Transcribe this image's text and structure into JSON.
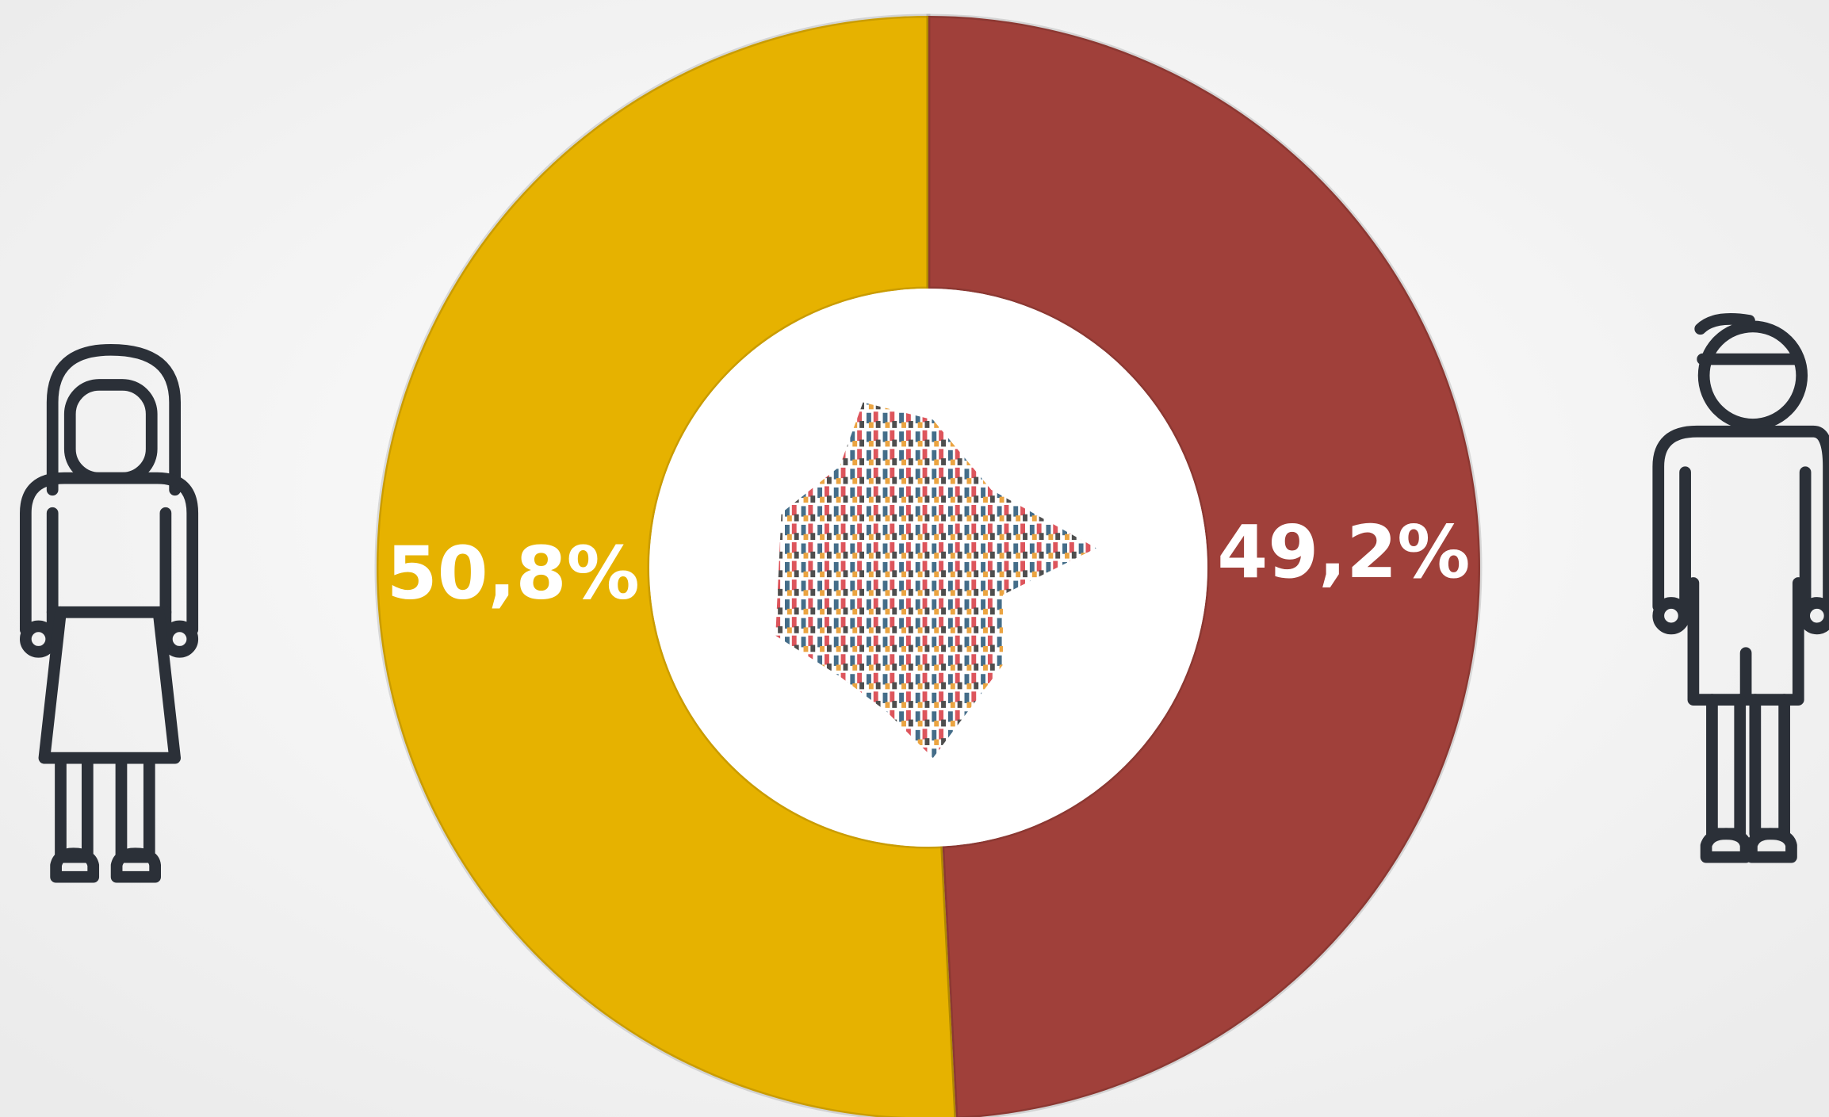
{
  "chart_data": {
    "type": "donut",
    "values": [
      50.8,
      49.2
    ],
    "value_labels": [
      "50,8%",
      "49,2%"
    ],
    "colors": [
      "#e6b200",
      "#a0403a"
    ]
  }
}
